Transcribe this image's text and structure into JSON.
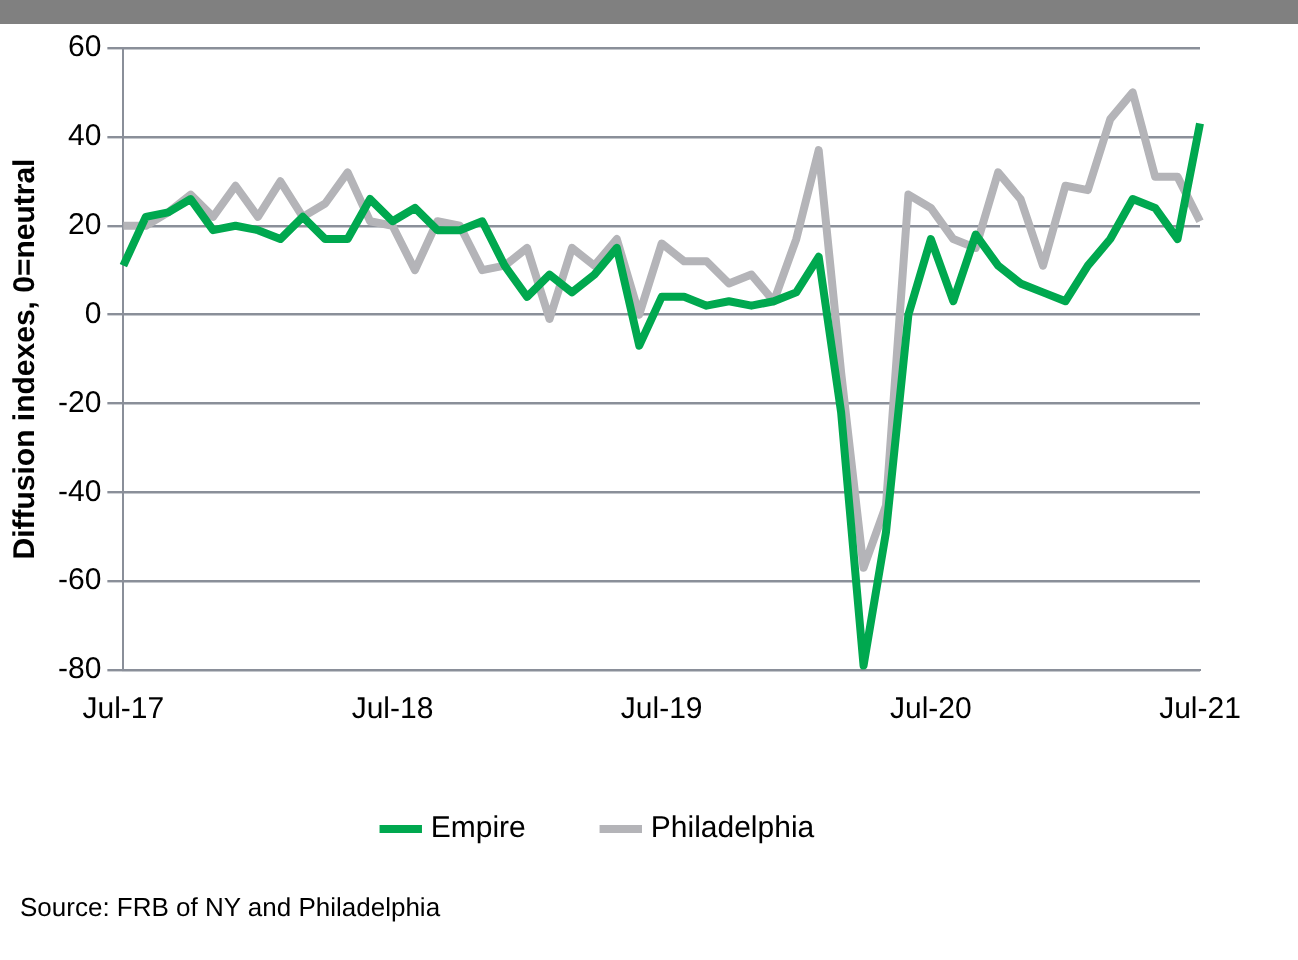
{
  "chart_data": {
    "type": "line",
    "ylabel": "Diffusion indexes, 0=neutral",
    "categories": [
      "Jul-17",
      null,
      null,
      null,
      null,
      null,
      null,
      null,
      null,
      null,
      null,
      null,
      "Jul-18",
      null,
      null,
      null,
      null,
      null,
      null,
      null,
      null,
      null,
      null,
      null,
      "Jul-19",
      null,
      null,
      null,
      null,
      null,
      null,
      null,
      null,
      null,
      null,
      null,
      "Jul-20",
      null,
      null,
      null,
      null,
      null,
      null,
      null,
      null,
      null,
      null,
      null,
      "Jul-21"
    ],
    "series": [
      {
        "name": "Empire",
        "color": "#00a84f",
        "values": [
          11,
          22,
          23,
          26,
          19,
          20,
          19,
          17,
          22,
          17,
          17,
          26,
          21,
          24,
          19,
          19,
          21,
          11,
          4,
          9,
          5,
          9,
          15,
          -7,
          4,
          4,
          2,
          3,
          2,
          3,
          5,
          13,
          -22,
          -79,
          -49,
          0,
          17,
          3,
          18,
          11,
          7,
          5,
          3,
          11,
          17,
          26,
          24,
          17,
          43
        ]
      },
      {
        "name": "Philadelphia",
        "color": "#b4b4b8",
        "values": [
          20,
          20,
          23,
          27,
          22,
          29,
          22,
          30,
          22,
          25,
          32,
          21,
          20,
          10,
          21,
          20,
          10,
          11,
          15,
          -1,
          15,
          11,
          17,
          0,
          16,
          12,
          12,
          7,
          9,
          3,
          17,
          37,
          -13,
          -57,
          -43,
          27,
          24,
          17,
          15,
          32,
          26,
          11,
          29,
          28,
          44,
          50,
          31,
          31,
          21
        ]
      }
    ],
    "ylim": [
      -80,
      60
    ],
    "yticks": [
      -80,
      -60,
      -40,
      -20,
      0,
      20,
      40,
      60
    ],
    "grid": "y",
    "legend": "bottom",
    "marker": "none",
    "line_style": "solid",
    "annotations": [
      "Source:  FRB of NY and Philadelphia"
    ]
  }
}
